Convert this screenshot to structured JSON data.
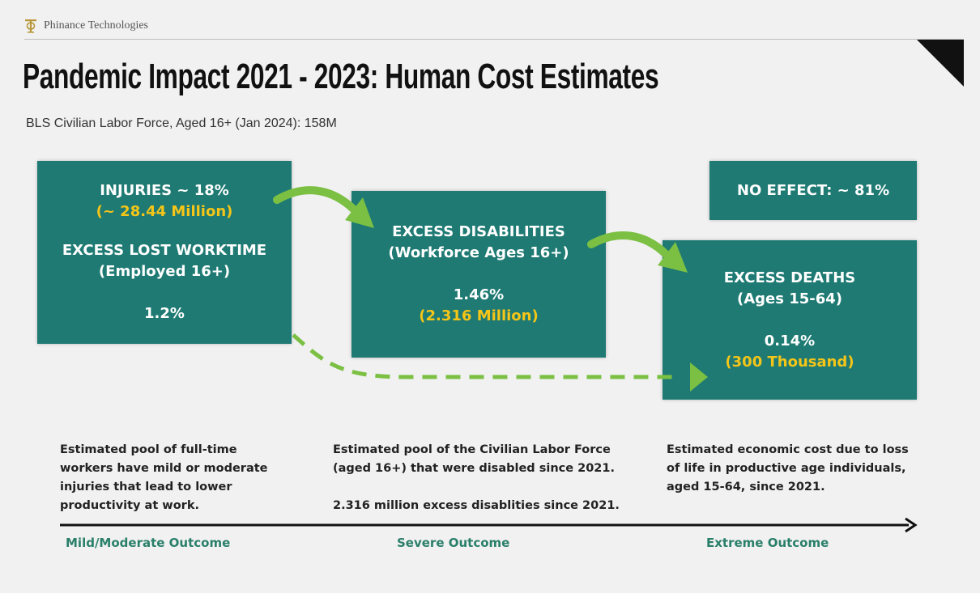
{
  "header": {
    "brand_name": "Phinance Technologies",
    "title": "Pandemic Impact 2021 - 2023: Human Cost Estimates",
    "subtitle": "BLS Civilian Labor Force, Aged 16+ (Jan 2024): 158M"
  },
  "colors": {
    "box_fill": "#1e7a73",
    "highlight": "#f5c518",
    "arrow_green": "#7bc043",
    "outcome_text": "#2a7f6a"
  },
  "boxes": {
    "injuries": {
      "heading": "INJURIES ~ 18%",
      "highlight": "(~ 28.44 Million)",
      "label_line1": "EXCESS LOST WORKTIME",
      "label_line2": "(Employed 16+)",
      "value": "1.2%"
    },
    "disabilities": {
      "label_line1": "EXCESS DISABILITIES",
      "label_line2": "(Workforce Ages 16+)",
      "value": "1.46%",
      "highlight": "(2.316 Million)"
    },
    "no_effect": {
      "label": "NO EFFECT: ~ 81%"
    },
    "deaths": {
      "label_line1": "EXCESS DEATHS",
      "label_line2": "(Ages 15-64)",
      "value": "0.14%",
      "highlight": "(300 Thousand)"
    }
  },
  "descriptions": {
    "col1": [
      "Estimated pool of full-time",
      "workers have mild or moderate",
      "injuries that lead to lower",
      "productivity at work."
    ],
    "col2": [
      "Estimated pool of the Civilian Labor Force",
      "(aged 16+) that were disabled since 2021."
    ],
    "col2_extra": "2.316 million excess disablities since 2021.",
    "col3": [
      "Estimated economic cost due to loss",
      "of life in productive age individuals,",
      "aged 15-64, since 2021."
    ]
  },
  "outcomes": {
    "mild": "Mild/Moderate Outcome",
    "severe": "Severe Outcome",
    "extreme": "Extreme Outcome"
  }
}
